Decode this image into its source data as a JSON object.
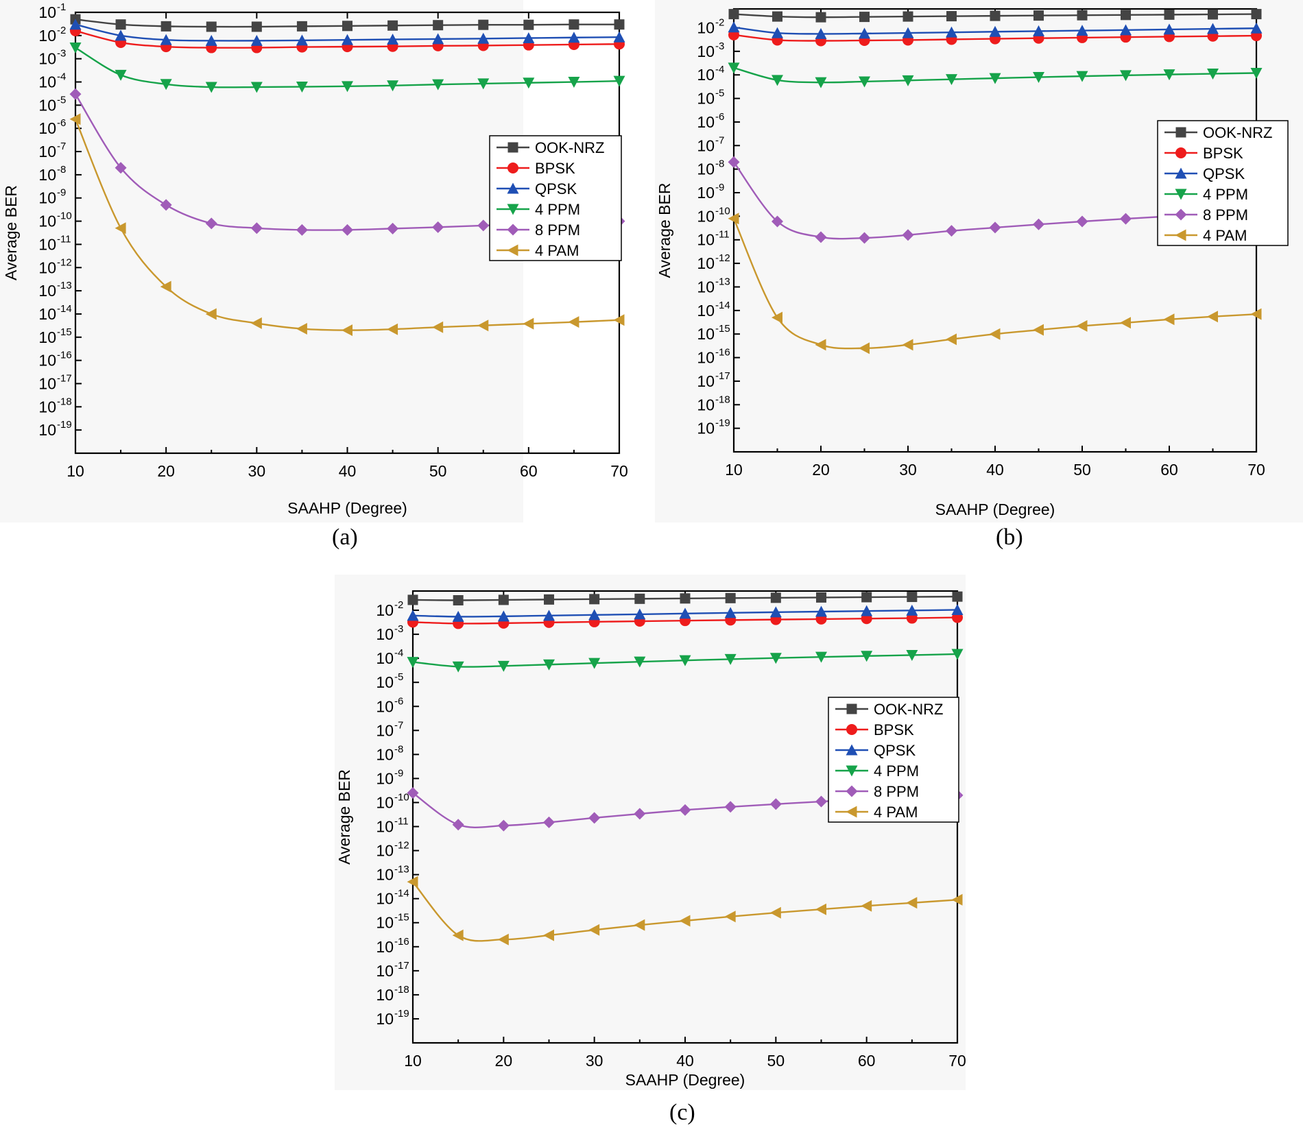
{
  "captions": [
    "(a)",
    "(b)",
    "(c)"
  ],
  "colors": {
    "OOK-NRZ": "#444444",
    "BPSK": "#ee1c1c",
    "QPSK": "#1f4fb4",
    "4 PPM": "#16a34a",
    "8 PPM": "#a05cb8",
    "4 PAM": "#c9982e"
  },
  "markers": {
    "OOK-NRZ": "square-icon",
    "BPSK": "circle-icon",
    "QPSK": "triangle-up-icon",
    "4 PPM": "triangle-down-icon",
    "8 PPM": "diamond-icon",
    "4 PAM": "triangle-left-icon"
  },
  "chart_data": [
    {
      "type": "line",
      "panel": "(a)",
      "xlabel": "SAAHP (Degree)",
      "ylabel": "Average BER",
      "y_scale": "log",
      "xlim": [
        10,
        70
      ],
      "ylim": [
        1e-20,
        0.1
      ],
      "xticks": [
        10,
        20,
        30,
        40,
        50,
        60,
        70
      ],
      "ytick_exponents": [
        -1,
        -2,
        -3,
        -4,
        -5,
        -6,
        -7,
        -8,
        -9,
        -10,
        -11,
        -12,
        -13,
        -14,
        -15,
        -16,
        -17,
        -18,
        -19
      ],
      "legend": [
        "OOK-NRZ",
        "BPSK",
        "QPSK",
        "4 PPM",
        "8 PPM",
        "4 PAM"
      ],
      "legend_position": "right-middle",
      "x": [
        10,
        15,
        20,
        25,
        30,
        35,
        40,
        45,
        50,
        55,
        60,
        65,
        70
      ],
      "series": [
        {
          "name": "OOK-NRZ",
          "values": [
            0.05,
            0.03,
            0.025,
            0.024,
            0.024,
            0.025,
            0.026,
            0.027,
            0.028,
            0.029,
            0.029,
            0.03,
            0.03
          ]
        },
        {
          "name": "BPSK",
          "values": [
            0.016,
            0.005,
            0.0033,
            0.003,
            0.003,
            0.0032,
            0.0033,
            0.0034,
            0.0036,
            0.0037,
            0.0039,
            0.0041,
            0.0043
          ]
        },
        {
          "name": "QPSK",
          "values": [
            0.03,
            0.01,
            0.0065,
            0.006,
            0.006,
            0.0062,
            0.0065,
            0.0068,
            0.0071,
            0.0074,
            0.0078,
            0.0082,
            0.0085
          ]
        },
        {
          "name": "4 PPM",
          "values": [
            0.003,
            0.0002,
            8e-05,
            6e-05,
            6e-05,
            6.2e-05,
            6.5e-05,
            7e-05,
            7.8e-05,
            8.5e-05,
            9.2e-05,
            0.0001,
            0.00011
          ]
        },
        {
          "name": "8 PPM",
          "values": [
            3e-05,
            2e-08,
            5e-10,
            8e-11,
            5e-11,
            4.2e-11,
            4.2e-11,
            4.8e-11,
            5.5e-11,
            6.5e-11,
            7.5e-11,
            8.5e-11,
            1e-10
          ]
        },
        {
          "name": "4 PAM",
          "values": [
            2.5e-06,
            5e-11,
            1.5e-13,
            1e-14,
            4e-15,
            2.3e-15,
            2e-15,
            2.2e-15,
            2.7e-15,
            3.2e-15,
            3.8e-15,
            4.5e-15,
            5.5e-15
          ]
        }
      ]
    },
    {
      "type": "line",
      "panel": "(b)",
      "xlabel": "SAAHP (Degree)",
      "ylabel": "Average BER",
      "y_scale": "log",
      "xlim": [
        10,
        70
      ],
      "ylim": [
        1e-20,
        0.06
      ],
      "xticks": [
        10,
        20,
        30,
        40,
        50,
        60,
        70
      ],
      "ytick_exponents": [
        -2,
        -3,
        -4,
        -5,
        -6,
        -7,
        -8,
        -9,
        -10,
        -11,
        -12,
        -13,
        -14,
        -15,
        -16,
        -17,
        -18,
        -19
      ],
      "legend": [
        "OOK-NRZ",
        "BPSK",
        "QPSK",
        "4 PPM",
        "8 PPM",
        "4 PAM"
      ],
      "legend_position": "right-middle",
      "x": [
        10,
        15,
        20,
        25,
        30,
        35,
        40,
        45,
        50,
        55,
        60,
        65,
        70
      ],
      "series": [
        {
          "name": "OOK-NRZ",
          "values": [
            0.038,
            0.03,
            0.028,
            0.029,
            0.03,
            0.031,
            0.032,
            0.033,
            0.034,
            0.035,
            0.036,
            0.037,
            0.038
          ]
        },
        {
          "name": "BPSK",
          "values": [
            0.005,
            0.003,
            0.0028,
            0.0029,
            0.003,
            0.0032,
            0.0034,
            0.0036,
            0.0038,
            0.004,
            0.0042,
            0.0044,
            0.0046
          ]
        },
        {
          "name": "QPSK",
          "values": [
            0.0105,
            0.006,
            0.0055,
            0.0057,
            0.006,
            0.0064,
            0.0068,
            0.0072,
            0.0076,
            0.008,
            0.0085,
            0.009,
            0.0095
          ]
        },
        {
          "name": "4 PPM",
          "values": [
            0.0002,
            6e-05,
            4.8e-05,
            5.2e-05,
            5.8e-05,
            6.5e-05,
            7.2e-05,
            8e-05,
            8.8e-05,
            9.6e-05,
            0.000104,
            0.000112,
            0.00012
          ]
        },
        {
          "name": "8 PPM",
          "values": [
            2e-08,
            6e-11,
            1.3e-11,
            1.2e-11,
            1.6e-11,
            2.4e-11,
            3.3e-11,
            4.5e-11,
            6e-11,
            7.8e-11,
            1e-10,
            1.2e-10,
            1.4e-10
          ]
        },
        {
          "name": "4 PAM",
          "values": [
            8e-11,
            5e-15,
            3.5e-16,
            2.5e-16,
            3.5e-16,
            6e-16,
            1e-15,
            1.5e-15,
            2.2e-15,
            3e-15,
            4.2e-15,
            5.5e-15,
            7e-15
          ]
        }
      ]
    },
    {
      "type": "line",
      "panel": "(c)",
      "xlabel": "SAAHP (Degree)",
      "ylabel": "Average BER",
      "y_scale": "log",
      "xlim": [
        10,
        70
      ],
      "ylim": [
        1e-20,
        0.06
      ],
      "xticks": [
        10,
        20,
        30,
        40,
        50,
        60,
        70
      ],
      "ytick_exponents": [
        -2,
        -3,
        -4,
        -5,
        -6,
        -7,
        -8,
        -9,
        -10,
        -11,
        -12,
        -13,
        -14,
        -15,
        -16,
        -17,
        -18,
        -19
      ],
      "legend": [
        "OOK-NRZ",
        "BPSK",
        "QPSK",
        "4 PPM",
        "8 PPM",
        "4 PAM"
      ],
      "legend_position": "right-middle",
      "x": [
        10,
        15,
        20,
        25,
        30,
        35,
        40,
        45,
        50,
        55,
        60,
        65,
        70
      ],
      "series": [
        {
          "name": "OOK-NRZ",
          "values": [
            0.027,
            0.026,
            0.027,
            0.028,
            0.029,
            0.03,
            0.031,
            0.032,
            0.033,
            0.034,
            0.035,
            0.036,
            0.037
          ]
        },
        {
          "name": "BPSK",
          "values": [
            0.0032,
            0.0028,
            0.0029,
            0.0031,
            0.0033,
            0.0035,
            0.0037,
            0.0039,
            0.0041,
            0.0043,
            0.0045,
            0.0047,
            0.005
          ]
        },
        {
          "name": "QPSK",
          "values": [
            0.006,
            0.0054,
            0.0056,
            0.006,
            0.0064,
            0.0068,
            0.0073,
            0.0078,
            0.0083,
            0.0088,
            0.0093,
            0.0098,
            0.0104
          ]
        },
        {
          "name": "4 PPM",
          "values": [
            7e-05,
            4.5e-05,
            4.8e-05,
            5.5e-05,
            6.3e-05,
            7.2e-05,
            8.2e-05,
            9.2e-05,
            0.000103,
            0.000114,
            0.000125,
            0.000136,
            0.00015
          ]
        },
        {
          "name": "8 PPM",
          "values": [
            2.5e-10,
            1.2e-11,
            1.1e-11,
            1.5e-11,
            2.3e-11,
            3.4e-11,
            4.9e-11,
            6.6e-11,
            8.6e-11,
            1.1e-10,
            1.4e-10,
            1.7e-10,
            2e-10
          ]
        },
        {
          "name": "4 PAM",
          "values": [
            5e-14,
            3e-16,
            2e-16,
            3e-16,
            5e-16,
            8e-16,
            1.2e-15,
            1.8e-15,
            2.6e-15,
            3.6e-15,
            5e-15,
            6.7e-15,
            9e-15
          ]
        }
      ]
    }
  ]
}
